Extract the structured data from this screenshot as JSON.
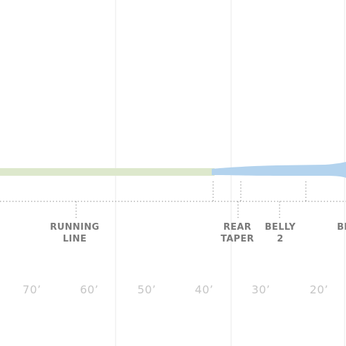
{
  "segments": {
    "running_line": [
      "RUNNING",
      "LINE"
    ],
    "rear_taper": [
      "REAR",
      "TAPER"
    ],
    "belly_2": [
      "BELLY",
      "2"
    ],
    "belly_cut": "BE"
  },
  "scale_labels": [
    "70’",
    "60’",
    "50’",
    "40’",
    "30’",
    "20’"
  ],
  "colors": {
    "running_line": "#dde8cc",
    "head": "#b3d3ee",
    "grid": "#e9e9e9",
    "dotted": "#8a8a8a",
    "label": "#7a7a7a",
    "scale": "#c6c6c6"
  }
}
